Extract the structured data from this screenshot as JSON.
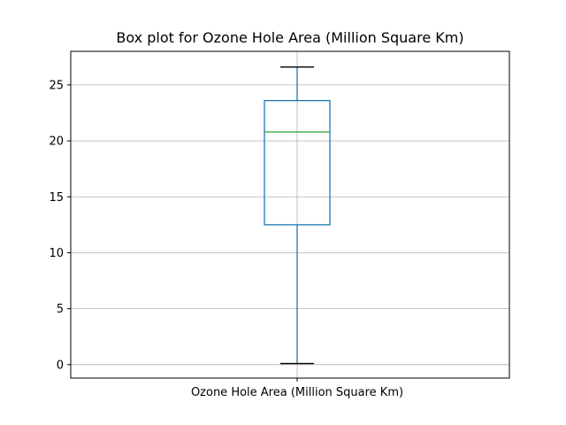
{
  "chart_data": {
    "type": "box",
    "title": "Box plot for Ozone Hole Area (Million Square Km)",
    "categories": [
      "Ozone Hole Area (Million Square Km)"
    ],
    "series": [
      {
        "whisker_low": 0.1,
        "q1": 12.5,
        "median": 20.8,
        "q3": 23.6,
        "whisker_high": 26.6
      }
    ],
    "ylim": [
      -1.2,
      28.0
    ],
    "yticks": [
      0,
      5,
      10,
      15,
      20,
      25
    ],
    "grid": true,
    "colors": {
      "box": "#1f77b4",
      "median": "#2ca02c",
      "whisker": "#1f77b4",
      "cap": "#000000",
      "grid": "#b0b0b0"
    }
  }
}
